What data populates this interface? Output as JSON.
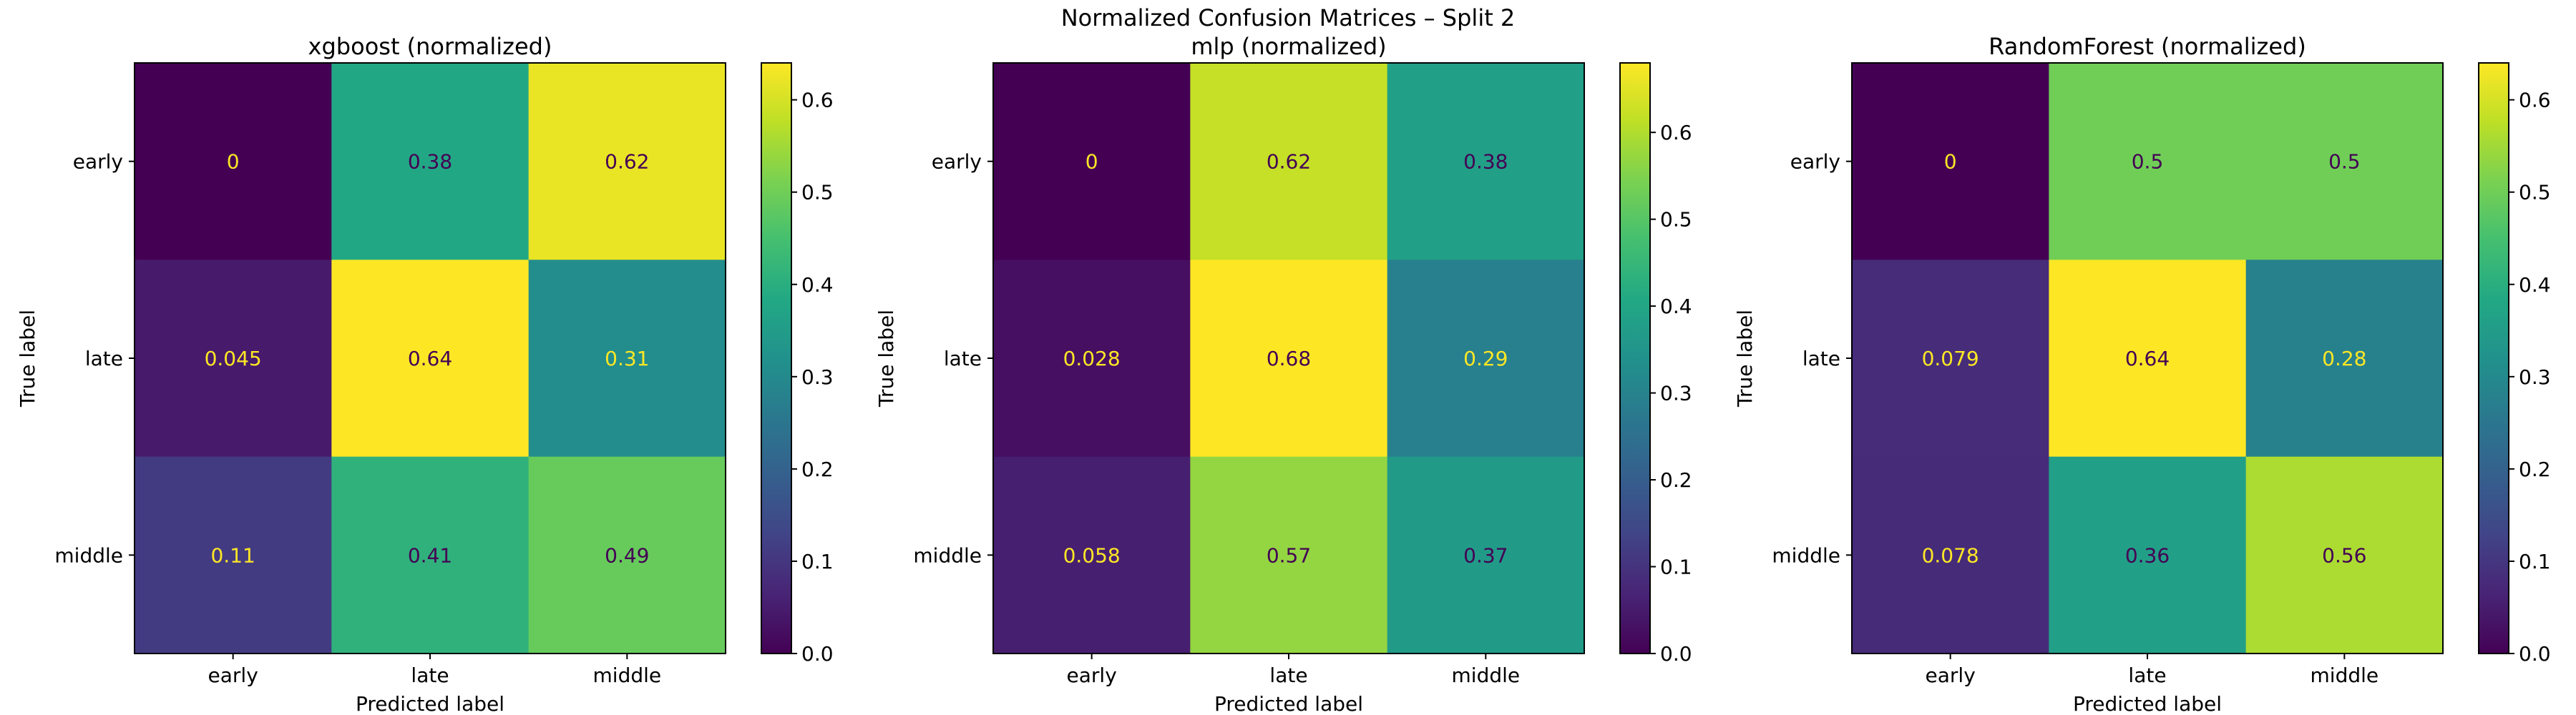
{
  "figure": {
    "suptitle": "Normalized Confusion Matrices – Split 2"
  },
  "chart_data": [
    {
      "type": "heatmap",
      "title": "xgboost (normalized)",
      "xlabel": "Predicted label",
      "ylabel": "True label",
      "x_categories": [
        "early",
        "late",
        "middle"
      ],
      "y_categories": [
        "early",
        "late",
        "middle"
      ],
      "values": [
        [
          0,
          0.38,
          0.62
        ],
        [
          0.045,
          0.64,
          0.31
        ],
        [
          0.11,
          0.41,
          0.49
        ]
      ],
      "value_labels": [
        [
          "0",
          "0.38",
          "0.62"
        ],
        [
          "0.045",
          "0.64",
          "0.31"
        ],
        [
          "0.11",
          "0.41",
          "0.49"
        ]
      ],
      "colormap": "viridis",
      "colorbar": {
        "vmin": 0,
        "vmax": 0.64,
        "ticks": [
          0,
          0.1,
          0.2,
          0.3,
          0.4,
          0.5,
          0.6
        ],
        "tick_labels": [
          "0.0",
          "0.1",
          "0.2",
          "0.3",
          "0.4",
          "0.5",
          "0.6"
        ]
      },
      "text_colors": {
        "dark_cell": "#fde725",
        "light_cell": "#440154"
      }
    },
    {
      "type": "heatmap",
      "title": "mlp (normalized)",
      "xlabel": "Predicted label",
      "ylabel": "True label",
      "x_categories": [
        "early",
        "late",
        "middle"
      ],
      "y_categories": [
        "early",
        "late",
        "middle"
      ],
      "values": [
        [
          0,
          0.62,
          0.38
        ],
        [
          0.028,
          0.68,
          0.29
        ],
        [
          0.058,
          0.57,
          0.37
        ]
      ],
      "value_labels": [
        [
          "0",
          "0.62",
          "0.38"
        ],
        [
          "0.028",
          "0.68",
          "0.29"
        ],
        [
          "0.058",
          "0.57",
          "0.37"
        ]
      ],
      "colormap": "viridis",
      "colorbar": {
        "vmin": 0,
        "vmax": 0.68,
        "ticks": [
          0,
          0.1,
          0.2,
          0.3,
          0.4,
          0.5,
          0.6
        ],
        "tick_labels": [
          "0.0",
          "0.1",
          "0.2",
          "0.3",
          "0.4",
          "0.5",
          "0.6"
        ]
      },
      "text_colors": {
        "dark_cell": "#fde725",
        "light_cell": "#440154"
      }
    },
    {
      "type": "heatmap",
      "title": "RandomForest (normalized)",
      "xlabel": "Predicted label",
      "ylabel": "True label",
      "x_categories": [
        "early",
        "late",
        "middle"
      ],
      "y_categories": [
        "early",
        "late",
        "middle"
      ],
      "values": [
        [
          0,
          0.5,
          0.5
        ],
        [
          0.079,
          0.64,
          0.28
        ],
        [
          0.078,
          0.36,
          0.56
        ]
      ],
      "value_labels": [
        [
          "0",
          "0.5",
          "0.5"
        ],
        [
          "0.079",
          "0.64",
          "0.28"
        ],
        [
          "0.078",
          "0.36",
          "0.56"
        ]
      ],
      "colormap": "viridis",
      "colorbar": {
        "vmin": 0,
        "vmax": 0.64,
        "ticks": [
          0,
          0.1,
          0.2,
          0.3,
          0.4,
          0.5,
          0.6
        ],
        "tick_labels": [
          "0.0",
          "0.1",
          "0.2",
          "0.3",
          "0.4",
          "0.5",
          "0.6"
        ]
      },
      "text_colors": {
        "dark_cell": "#fde725",
        "light_cell": "#440154"
      }
    }
  ]
}
